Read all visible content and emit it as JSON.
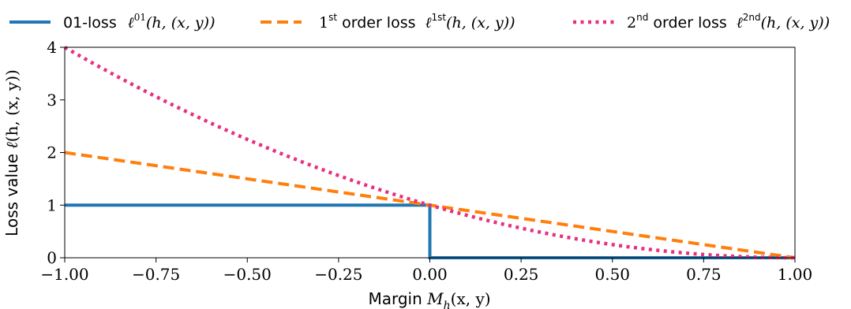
{
  "chart_data": {
    "type": "line",
    "xlabel": "Margin M_h(x, y)",
    "ylabel": "Loss value ℓ(h, (x, y))",
    "xlim": [
      -1.0,
      1.0
    ],
    "ylim": [
      0,
      4
    ],
    "x_ticks": [
      "−1.00",
      "−0.75",
      "−0.50",
      "−0.25",
      "0.00",
      "0.25",
      "0.50",
      "0.75",
      "1.00"
    ],
    "x_tick_values": [
      -1.0,
      -0.75,
      -0.5,
      -0.25,
      0.0,
      0.25,
      0.5,
      0.75,
      1.0
    ],
    "y_ticks": [
      "0",
      "1",
      "2",
      "3",
      "4"
    ],
    "y_tick_values": [
      0,
      1,
      2,
      3,
      4
    ],
    "grid": false,
    "legend_position": "top",
    "series": [
      {
        "name": "01-loss ℓ^01(h, (x, y))",
        "color": "#1f77b4",
        "style": "solid",
        "x": [
          -1.0,
          0.0,
          0.0,
          1.0
        ],
        "y": [
          1,
          1,
          0,
          0
        ]
      },
      {
        "name": "1st order loss ℓ^1st(h, (x, y))",
        "color": "#ff7f0e",
        "style": "dashed",
        "x": [
          -1.0,
          -0.5,
          0.0,
          0.5,
          1.0
        ],
        "y": [
          2.0,
          1.5,
          1.0,
          0.5,
          0.0
        ]
      },
      {
        "name": "2nd order loss ℓ^2nd(h, (x, y))",
        "color": "#e7307f",
        "style": "dotted",
        "x": [
          -1.0,
          -0.75,
          -0.5,
          -0.25,
          0.0,
          0.25,
          0.5,
          0.75,
          1.0
        ],
        "y": [
          4.0,
          3.0625,
          2.25,
          1.5625,
          1.0,
          0.5625,
          0.25,
          0.0625,
          0.0
        ]
      }
    ]
  },
  "legend": {
    "item1": {
      "label": "01-loss",
      "sym_base": "ℓ",
      "sym_sup": "01",
      "args": "(h, (x, y))"
    },
    "item2": {
      "prefix": "1",
      "prefix_sup": "st",
      "label": " order loss",
      "sym_base": "ℓ",
      "sym_sup": "1st",
      "args": "(h, (x, y))"
    },
    "item3": {
      "prefix": "2",
      "prefix_sup": "nd",
      "label": " order loss",
      "sym_base": "ℓ",
      "sym_sup": "2nd",
      "args": "(h, (x, y))"
    }
  },
  "axis_labels": {
    "x_text": "Margin ",
    "x_sym": "M",
    "x_sub": "h",
    "x_args": "(x, y)",
    "y_text": "Loss value ",
    "y_sym": "ℓ",
    "y_args": "(h, (x, y))"
  }
}
